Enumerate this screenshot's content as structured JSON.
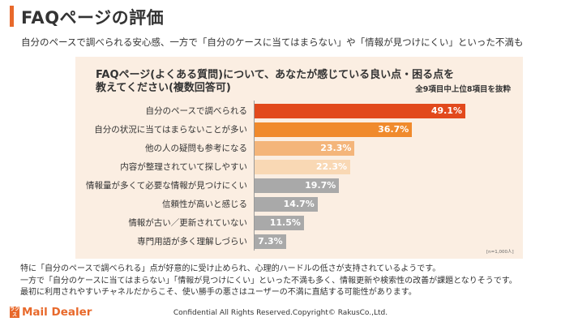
{
  "page": {
    "title": "FAQページの評価",
    "subtitle": "自分のペースで調べられる安心感、一方で「自分のケースに当てはまらない」や「情報が見つけにくい」といった不満も"
  },
  "chart_data": {
    "type": "bar",
    "orientation": "horizontal",
    "title_line1": "FAQページ(よくある質問)について、あなたが感じている良い点・困る点を",
    "title_line2": "教えてください(複数回答可)",
    "note": "全9項目中上位8項目を抜粋",
    "sample": "[n=1,000人]",
    "categories": [
      "自分のペースで調べられる",
      "自分の状況に当てはまらないことが多い",
      "他の人の疑問も参考になる",
      "内容が整理されていて探しやすい",
      "情報量が多くて必要な情報が見つけにくい",
      "信頼性が高いと感じる",
      "情報が古い／更新されていない",
      "専門用語が多く理解しづらい"
    ],
    "values": [
      49.1,
      36.7,
      23.3,
      22.3,
      19.7,
      14.7,
      11.5,
      7.3
    ],
    "value_labels": [
      "49.1%",
      "36.7%",
      "23.3%",
      "22.3%",
      "19.7%",
      "14.7%",
      "11.5%",
      "7.3%"
    ],
    "colors": [
      "#e2491c",
      "#f08a2c",
      "#f4b57a",
      "#f9d8b4",
      "#a9a9a9",
      "#a9a9a9",
      "#a9a9a9",
      "#a9a9a9"
    ],
    "xlim": [
      0,
      50
    ],
    "grid": false,
    "legend": "none"
  },
  "comments": [
    "特に「自分のペースで調べられる」点が好意的に受け止められ、心理的ハードルの低さが支持されているようです。",
    "一方で「自分のケースに当てはまらない」「情報が見つけにくい」といった不満も多く、情報更新や検索性の改善が課題となりそうです。",
    "最初に利用されやすいチャネルだからこそ、使い勝手の悪さはユーザーの不満に直結する可能性があります。"
  ],
  "brand": {
    "logo_mark": "ラク ス",
    "name": "Mail Dealer",
    "accent": "#e8692b"
  },
  "footer": "Confidential All Rights Reserved.Copyright© RakusCo.,Ltd."
}
